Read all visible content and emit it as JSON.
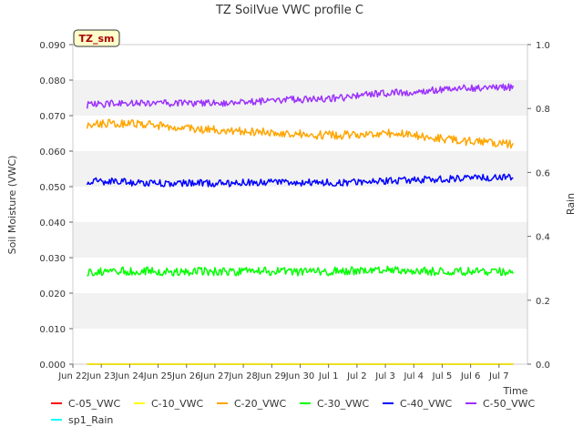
{
  "chart_data": {
    "type": "line",
    "title": "TZ SoilVue VWC profile C",
    "xlabel": "Time",
    "ylabel": "Soil Moisture (VWC)",
    "y2label": "Rain",
    "ylim": [
      0.0,
      0.09
    ],
    "y2lim": [
      0.0,
      1.0
    ],
    "yticks": [
      "0.000",
      "0.010",
      "0.020",
      "0.030",
      "0.040",
      "0.050",
      "0.060",
      "0.070",
      "0.080",
      "0.090"
    ],
    "y2ticks": [
      "0.0",
      "0.2",
      "0.4",
      "0.6",
      "0.8",
      "1.0"
    ],
    "xticks": [
      "Jun 22",
      "Jun 23",
      "Jun 24",
      "Jun 25",
      "Jun 26",
      "Jun 27",
      "Jun 28",
      "Jun 29",
      "Jun 30",
      "Jul 1",
      "Jul 2",
      "Jul 3",
      "Jul 4",
      "Jul 5",
      "Jul 6",
      "Jul 7"
    ],
    "xlim": [
      "2023-06-21",
      "2023-07-07"
    ],
    "grid": "horizontal bands",
    "legend_position": "bottom",
    "annotation": "TZ_sm",
    "x": [
      "2023-06-21T12:00",
      "2023-06-22T12:00",
      "2023-06-23T12:00",
      "2023-06-24T12:00",
      "2023-06-25T12:00",
      "2023-06-26T12:00",
      "2023-06-27T12:00",
      "2023-06-28T12:00",
      "2023-06-29T12:00",
      "2023-06-30T12:00",
      "2023-07-01T12:00",
      "2023-07-02T12:00",
      "2023-07-03T12:00",
      "2023-07-04T12:00",
      "2023-07-05T12:00",
      "2023-07-06T12:00"
    ],
    "series": [
      {
        "name": "C-05_VWC",
        "color": "#ff0000",
        "axis": "left",
        "values": [
          0,
          0,
          0,
          0,
          0,
          0,
          0,
          0,
          0,
          0,
          0,
          0,
          0,
          0,
          0,
          0
        ]
      },
      {
        "name": "C-10_VWC",
        "color": "#ffff00",
        "axis": "left",
        "values": [
          0,
          0,
          0,
          0,
          0,
          0,
          0,
          0,
          0,
          0,
          0,
          0,
          0,
          0,
          0,
          0
        ]
      },
      {
        "name": "C-20_VWC",
        "color": "#ffa500",
        "axis": "left",
        "values": [
          0.0675,
          0.068,
          0.0675,
          0.067,
          0.066,
          0.066,
          0.0655,
          0.065,
          0.0645,
          0.0645,
          0.065,
          0.065,
          0.064,
          0.063,
          0.0625,
          0.062
        ]
      },
      {
        "name": "C-30_VWC",
        "color": "#00ff00",
        "axis": "left",
        "values": [
          0.026,
          0.0262,
          0.0262,
          0.026,
          0.0262,
          0.026,
          0.0262,
          0.026,
          0.026,
          0.0262,
          0.0265,
          0.0265,
          0.0262,
          0.026,
          0.0262,
          0.026
        ]
      },
      {
        "name": "C-40_VWC",
        "color": "#0000ff",
        "axis": "left",
        "values": [
          0.0515,
          0.0515,
          0.051,
          0.051,
          0.051,
          0.051,
          0.0512,
          0.0512,
          0.0512,
          0.0512,
          0.0515,
          0.0518,
          0.052,
          0.0522,
          0.0525,
          0.0525
        ]
      },
      {
        "name": "C-50_VWC",
        "color": "#9b30ff",
        "axis": "left",
        "values": [
          0.073,
          0.0735,
          0.0735,
          0.0735,
          0.0735,
          0.0735,
          0.074,
          0.0745,
          0.0745,
          0.075,
          0.076,
          0.0765,
          0.077,
          0.0775,
          0.078,
          0.078
        ]
      },
      {
        "name": "sp1_Rain",
        "color": "#00ffff",
        "axis": "right",
        "values": [
          0,
          0,
          0,
          0,
          0,
          0,
          0,
          0,
          0,
          0,
          0,
          0,
          0,
          0,
          0,
          0
        ]
      }
    ]
  }
}
